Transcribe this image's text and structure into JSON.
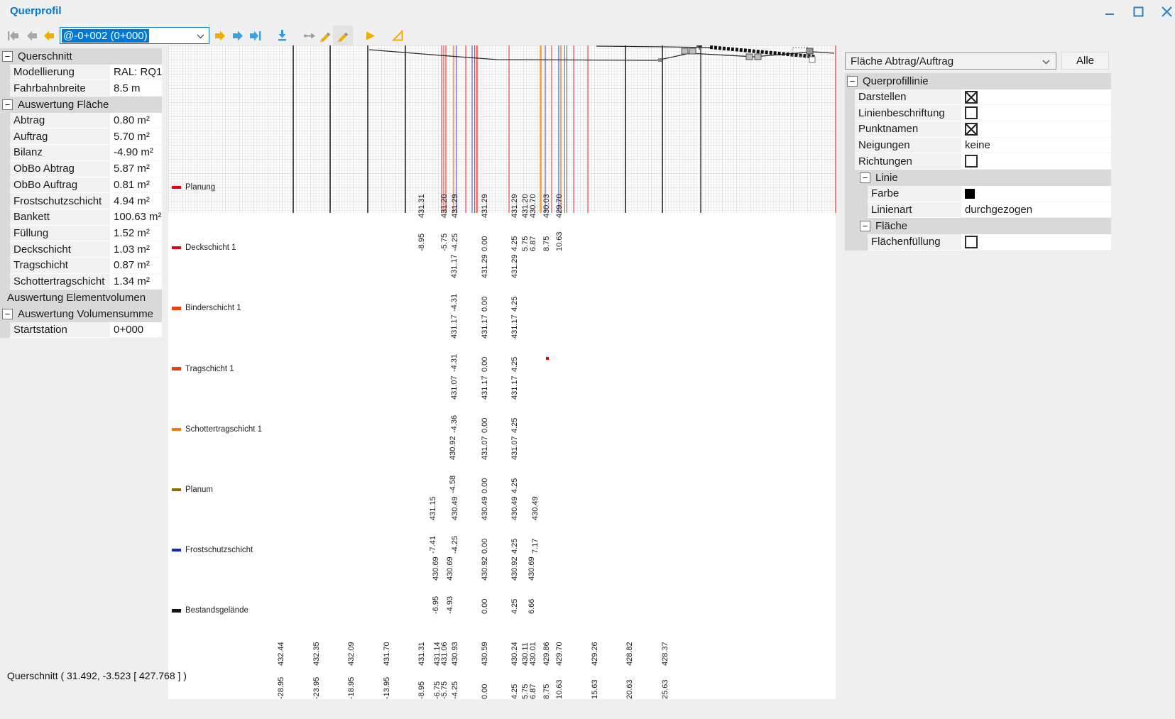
{
  "window": {
    "title": "Querprofil"
  },
  "statusbar": {
    "text": "Querschnitt  ( 31.492, -3.523 [ 427.768 ] )"
  },
  "toolbar": {
    "station_selector": "@-0+002 (0+000)"
  },
  "left_panel": {
    "rows": [
      {
        "type": "section",
        "label": "Querschnitt",
        "collapsible": true
      },
      {
        "type": "prop",
        "label": "Modellierung",
        "value": "RAL: RQ11,5"
      },
      {
        "type": "prop",
        "label": "Fahrbahnbreite",
        "value": "8.5 m"
      },
      {
        "type": "section",
        "label": "Auswertung Fläche",
        "collapsible": true
      },
      {
        "type": "prop",
        "label": "Abtrag",
        "value": "0.80 m²"
      },
      {
        "type": "prop",
        "label": "Auftrag",
        "value": "5.70 m²"
      },
      {
        "type": "prop",
        "label": "Bilanz",
        "value": "-4.90 m²"
      },
      {
        "type": "prop",
        "label": "ObBo Abtrag",
        "value": "5.87 m²"
      },
      {
        "type": "prop",
        "label": "ObBo Auftrag",
        "value": "0.81 m²"
      },
      {
        "type": "prop",
        "label": "Frostschutzschicht",
        "value": "4.94 m²"
      },
      {
        "type": "prop",
        "label": "Bankett",
        "value": "100.63 m²"
      },
      {
        "type": "prop",
        "label": "Füllung",
        "value": "1.52 m²"
      },
      {
        "type": "prop",
        "label": "Deckschicht",
        "value": "1.03 m²"
      },
      {
        "type": "prop",
        "label": "Tragschicht",
        "value": "0.87 m²"
      },
      {
        "type": "prop",
        "label": "Schottertragschicht",
        "value": "1.34 m²"
      },
      {
        "type": "section",
        "label": "Auswertung Elementvolumen",
        "collapsible": false
      },
      {
        "type": "section",
        "label": "Auswertung Volumensumme",
        "collapsible": true
      },
      {
        "type": "prop",
        "label": "Startstation",
        "value": "0+000"
      }
    ]
  },
  "right_panel": {
    "selector_value": "Fläche Abtrag/Auftrag",
    "alle_button": "Alle",
    "rows": [
      {
        "type": "section",
        "label": "Querprofillinie",
        "indent": 0
      },
      {
        "type": "prop",
        "label": "Darstellen",
        "value_type": "checkbox",
        "checked": true,
        "indent": 0
      },
      {
        "type": "prop",
        "label": "Linienbeschriftung",
        "value_type": "checkbox",
        "checked": false,
        "indent": 0
      },
      {
        "type": "prop",
        "label": "Punktnamen",
        "value_type": "checkbox",
        "checked": true,
        "indent": 0
      },
      {
        "type": "prop",
        "label": "Neigungen",
        "value_type": "text",
        "value": "keine",
        "indent": 0
      },
      {
        "type": "prop",
        "label": "Richtungen",
        "value_type": "checkbox",
        "checked": false,
        "indent": 0
      },
      {
        "type": "section",
        "label": "Linie",
        "indent": 1
      },
      {
        "type": "prop",
        "label": "Farbe",
        "value_type": "color",
        "value": "#000000",
        "indent": 1
      },
      {
        "type": "prop",
        "label": "Linienart",
        "value_type": "text",
        "value": "durchgezogen",
        "indent": 1
      },
      {
        "type": "section",
        "label": "Fläche",
        "indent": 1
      },
      {
        "type": "prop",
        "label": "Flächenfüllung",
        "value_type": "checkbox",
        "checked": false,
        "indent": 1
      }
    ]
  },
  "profile_bands": [
    {
      "name": "Planung",
      "color": "#e3001b",
      "points": [
        {
          "s": "-8.95",
          "z": "431.31"
        },
        {
          "s": "-5.75",
          "z": "431.20"
        },
        {
          "s": "-4.25",
          "z": "431.29"
        },
        {
          "s": "0.00",
          "z": "431.29"
        },
        {
          "s": "4.25",
          "z": "431.29"
        },
        {
          "s": "5.75",
          "z": "431.20"
        },
        {
          "s": "6.87",
          "z": "430.70"
        },
        {
          "s": "8.75",
          "z": "430.03"
        },
        {
          "s": "10.63",
          "z": "429.70"
        }
      ]
    },
    {
      "name": "Deckschicht 1",
      "color": "#e3001b",
      "points": [
        {
          "s": "-4.31",
          "z": "431.17"
        },
        {
          "s": "0.00",
          "z": "431.29"
        },
        {
          "s": "4.25",
          "z": "431.29"
        }
      ]
    },
    {
      "name": "Binderschicht 1",
      "color": "#e54213",
      "points": [
        {
          "s": "-4.31",
          "z": "431.17"
        },
        {
          "s": "0.00",
          "z": "431.17"
        },
        {
          "s": "4.25",
          "z": "431.17"
        }
      ]
    },
    {
      "name": "Tragschicht 1",
      "color": "#e54213",
      "points": [
        {
          "s": "-4.36",
          "z": "431.07"
        },
        {
          "s": "0.00",
          "z": "431.17"
        },
        {
          "s": "4.25",
          "z": "431.17"
        }
      ]
    },
    {
      "name": "Schottertragschicht 1",
      "color": "#ef7c00",
      "points": [
        {
          "s": "-4.58",
          "z": "430.92"
        },
        {
          "s": "0.00",
          "z": "431.07"
        },
        {
          "s": "4.25",
          "z": "431.07"
        }
      ]
    },
    {
      "name": "Planum",
      "color": "#8a6d00",
      "points": [
        {
          "s": "-7.41",
          "z": "431.15"
        },
        {
          "s": "-4.25",
          "z": "430.49"
        },
        {
          "s": "0.00",
          "z": "430.49"
        },
        {
          "s": "4.25",
          "z": "430.49"
        },
        {
          "s": "7.17",
          "z": "430.49"
        }
      ]
    },
    {
      "name": "Frostschutzschicht",
      "color": "#1226bb",
      "points": [
        {
          "s": "-6.95",
          "z": "430.69"
        },
        {
          "s": "-4.93",
          "z": "430.69"
        },
        {
          "s": "0.00",
          "z": "430.92"
        },
        {
          "s": "4.25",
          "z": "430.92"
        },
        {
          "s": "6.66",
          "z": "430.69"
        }
      ]
    },
    {
      "name": "Bestandsgelände",
      "color": "#141414",
      "points": [
        {
          "s": "-28.95",
          "z": "432.44"
        },
        {
          "s": "-23.95",
          "z": "432.35"
        },
        {
          "s": "-18.95",
          "z": "432.09"
        },
        {
          "s": "-13.95",
          "z": "431.70"
        },
        {
          "s": "-8.95",
          "z": "431.31"
        },
        {
          "s": "-6.75",
          "z": "431.14"
        },
        {
          "s": "-5.75",
          "z": "431.06"
        },
        {
          "s": "-4.25",
          "z": "430.93"
        },
        {
          "s": "0.00",
          "z": "430.59"
        },
        {
          "s": "4.25",
          "z": "430.24"
        },
        {
          "s": "5.75",
          "z": "430.11"
        },
        {
          "s": "6.87",
          "z": "430.01"
        },
        {
          "s": "8.75",
          "z": "429.86"
        },
        {
          "s": "10.63",
          "z": "429.70"
        },
        {
          "s": "15.63",
          "z": "429.26"
        },
        {
          "s": "20.63",
          "z": "428.82"
        },
        {
          "s": "25.63",
          "z": "428.37"
        }
      ]
    }
  ]
}
